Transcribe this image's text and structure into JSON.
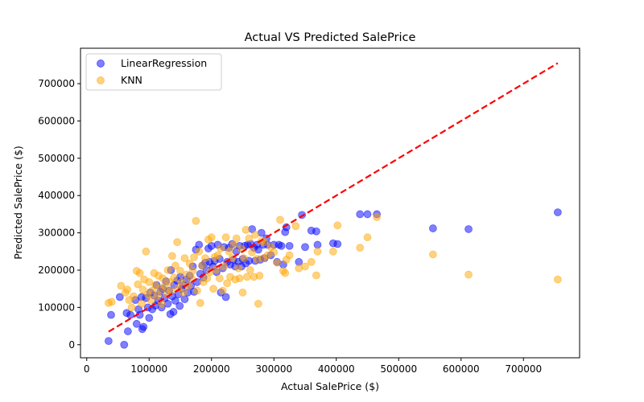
{
  "chart_data": {
    "type": "scatter",
    "title": "Actual VS Predicted SalePrice",
    "xlabel": "Actual SalePrice ($)",
    "ylabel": "Predicted SalePrice ($)",
    "xlim": [
      -10000,
      790000
    ],
    "ylim": [
      -35000,
      795000
    ],
    "xticks": [
      0,
      100000,
      200000,
      300000,
      400000,
      500000,
      600000,
      700000
    ],
    "yticks": [
      0,
      100000,
      200000,
      300000,
      400000,
      500000,
      600000,
      700000
    ],
    "grid": false,
    "legend_position": "top-left",
    "series": [
      {
        "name": "LinearRegression",
        "color": "#0000ff",
        "alpha": 0.5,
        "points": [
          [
            35000,
            10000
          ],
          [
            39000,
            80000
          ],
          [
            53000,
            128000
          ],
          [
            60000,
            0
          ],
          [
            64000,
            85000
          ],
          [
            66000,
            36000
          ],
          [
            70000,
            80000
          ],
          [
            78000,
            120000
          ],
          [
            80000,
            56000
          ],
          [
            83000,
            95000
          ],
          [
            85000,
            80000
          ],
          [
            88000,
            128000
          ],
          [
            89000,
            42000
          ],
          [
            91000,
            48000
          ],
          [
            95000,
            125000
          ],
          [
            98000,
            100000
          ],
          [
            100000,
            72000
          ],
          [
            102000,
            140000
          ],
          [
            105000,
            95000
          ],
          [
            108000,
            132000
          ],
          [
            110000,
            105000
          ],
          [
            112000,
            160000
          ],
          [
            115000,
            118000
          ],
          [
            118000,
            142000
          ],
          [
            120000,
            100000
          ],
          [
            122000,
            150000
          ],
          [
            125000,
            125000
          ],
          [
            127000,
            170000
          ],
          [
            130000,
            110000
          ],
          [
            132000,
            145000
          ],
          [
            134000,
            82000
          ],
          [
            135000,
            200000
          ],
          [
            137000,
            130000
          ],
          [
            139000,
            88000
          ],
          [
            140000,
            160000
          ],
          [
            142000,
            118000
          ],
          [
            145000,
            172000
          ],
          [
            147000,
            135000
          ],
          [
            149000,
            104000
          ],
          [
            150000,
            182000
          ],
          [
            152000,
            150000
          ],
          [
            155000,
            160000
          ],
          [
            157000,
            122000
          ],
          [
            160000,
            175000
          ],
          [
            162000,
            140000
          ],
          [
            165000,
            185000
          ],
          [
            167000,
            158000
          ],
          [
            170000,
            210000
          ],
          [
            172000,
            142000
          ],
          [
            175000,
            255000
          ],
          [
            177000,
            168000
          ],
          [
            180000,
            268000
          ],
          [
            182000,
            190000
          ],
          [
            185000,
            212000
          ],
          [
            187000,
            180000
          ],
          [
            190000,
            220000
          ],
          [
            192000,
            200000
          ],
          [
            195000,
            258000
          ],
          [
            197000,
            222000
          ],
          [
            200000,
            265000
          ],
          [
            202000,
            210000
          ],
          [
            205000,
            225000
          ],
          [
            208000,
            195000
          ],
          [
            210000,
            268000
          ],
          [
            213000,
            230000
          ],
          [
            215000,
            140000
          ],
          [
            218000,
            205000
          ],
          [
            220000,
            262000
          ],
          [
            223000,
            128000
          ],
          [
            225000,
            222000
          ],
          [
            228000,
            260000
          ],
          [
            230000,
            215000
          ],
          [
            233000,
            270000
          ],
          [
            235000,
            228000
          ],
          [
            238000,
            210000
          ],
          [
            240000,
            250000
          ],
          [
            243000,
            222000
          ],
          [
            245000,
            265000
          ],
          [
            248000,
            210000
          ],
          [
            250000,
            230000
          ],
          [
            253000,
            265000
          ],
          [
            255000,
            218000
          ],
          [
            258000,
            268000
          ],
          [
            260000,
            225000
          ],
          [
            263000,
            270000
          ],
          [
            265000,
            310000
          ],
          [
            268000,
            260000
          ],
          [
            270000,
            225000
          ],
          [
            273000,
            268000
          ],
          [
            275000,
            255000
          ],
          [
            278000,
            228000
          ],
          [
            280000,
            300000
          ],
          [
            283000,
            268000
          ],
          [
            285000,
            232000
          ],
          [
            288000,
            285000
          ],
          [
            290000,
            268000
          ],
          [
            295000,
            240000
          ],
          [
            300000,
            268000
          ],
          [
            305000,
            222000
          ],
          [
            308000,
            268000
          ],
          [
            312000,
            265000
          ],
          [
            315000,
            215000
          ],
          [
            318000,
            302000
          ],
          [
            320000,
            315000
          ],
          [
            325000,
            265000
          ],
          [
            340000,
            222000
          ],
          [
            345000,
            348000
          ],
          [
            350000,
            262000
          ],
          [
            360000,
            306000
          ],
          [
            368000,
            304000
          ],
          [
            370000,
            268000
          ],
          [
            395000,
            272000
          ],
          [
            402000,
            270000
          ],
          [
            438000,
            350000
          ],
          [
            450000,
            350000
          ],
          [
            465000,
            350000
          ],
          [
            555000,
            312000
          ],
          [
            612000,
            310000
          ],
          [
            755000,
            355000
          ]
        ]
      },
      {
        "name": "KNN",
        "color": "#ffa500",
        "alpha": 0.5,
        "points": [
          [
            35000,
            112000
          ],
          [
            40000,
            115000
          ],
          [
            55000,
            158000
          ],
          [
            62000,
            140000
          ],
          [
            65000,
            148000
          ],
          [
            68000,
            120000
          ],
          [
            72000,
            100000
          ],
          [
            75000,
            130000
          ],
          [
            80000,
            198000
          ],
          [
            82000,
            162000
          ],
          [
            85000,
            192000
          ],
          [
            88000,
            110000
          ],
          [
            90000,
            148000
          ],
          [
            92000,
            175000
          ],
          [
            95000,
            250000
          ],
          [
            98000,
            135000
          ],
          [
            100000,
            168000
          ],
          [
            103000,
            120000
          ],
          [
            105000,
            145000
          ],
          [
            108000,
            192000
          ],
          [
            110000,
            160000
          ],
          [
            113000,
            132000
          ],
          [
            115000,
            185000
          ],
          [
            118000,
            150000
          ],
          [
            120000,
            110000
          ],
          [
            122000,
            178000
          ],
          [
            125000,
            158000
          ],
          [
            128000,
            138000
          ],
          [
            130000,
            200000
          ],
          [
            133000,
            168000
          ],
          [
            135000,
            145000
          ],
          [
            137000,
            238000
          ],
          [
            140000,
            180000
          ],
          [
            142000,
            212000
          ],
          [
            145000,
            275000
          ],
          [
            147000,
            152000
          ],
          [
            150000,
            198000
          ],
          [
            152000,
            168000
          ],
          [
            155000,
            140000
          ],
          [
            157000,
            232000
          ],
          [
            160000,
            188000
          ],
          [
            163000,
            158000
          ],
          [
            165000,
            218000
          ],
          [
            168000,
            178000
          ],
          [
            170000,
            198000
          ],
          [
            172000,
            235000
          ],
          [
            175000,
            332000
          ],
          [
            177000,
            145000
          ],
          [
            180000,
            250000
          ],
          [
            182000,
            112000
          ],
          [
            185000,
            212000
          ],
          [
            187000,
            168000
          ],
          [
            190000,
            232000
          ],
          [
            193000,
            178000
          ],
          [
            195000,
            282000
          ],
          [
            198000,
            195000
          ],
          [
            200000,
            288000
          ],
          [
            203000,
            150000
          ],
          [
            205000,
            235000
          ],
          [
            208000,
            202000
          ],
          [
            210000,
            240000
          ],
          [
            213000,
            178000
          ],
          [
            215000,
            258000
          ],
          [
            218000,
            145000
          ],
          [
            220000,
            210000
          ],
          [
            223000,
            288000
          ],
          [
            225000,
            165000
          ],
          [
            228000,
            250000
          ],
          [
            230000,
            182000
          ],
          [
            233000,
            232000
          ],
          [
            235000,
            268000
          ],
          [
            238000,
            175000
          ],
          [
            240000,
            285000
          ],
          [
            243000,
            205000
          ],
          [
            245000,
            178000
          ],
          [
            248000,
            258000
          ],
          [
            250000,
            140000
          ],
          [
            252000,
            232000
          ],
          [
            255000,
            308000
          ],
          [
            257000,
            182000
          ],
          [
            260000,
            285000
          ],
          [
            262000,
            200000
          ],
          [
            265000,
            248000
          ],
          [
            268000,
            182000
          ],
          [
            270000,
            295000
          ],
          [
            273000,
            230000
          ],
          [
            275000,
            110000
          ],
          [
            277000,
            185000
          ],
          [
            280000,
            278000
          ],
          [
            283000,
            232000
          ],
          [
            285000,
            275000
          ],
          [
            290000,
            240000
          ],
          [
            295000,
            262000
          ],
          [
            300000,
            248000
          ],
          [
            305000,
            220000
          ],
          [
            310000,
            335000
          ],
          [
            315000,
            198000
          ],
          [
            318000,
            192000
          ],
          [
            320000,
            228000
          ],
          [
            325000,
            240000
          ],
          [
            335000,
            318000
          ],
          [
            340000,
            205000
          ],
          [
            350000,
            210000
          ],
          [
            360000,
            222000
          ],
          [
            368000,
            186000
          ],
          [
            370000,
            250000
          ],
          [
            395000,
            250000
          ],
          [
            402000,
            320000
          ],
          [
            438000,
            260000
          ],
          [
            450000,
            288000
          ],
          [
            465000,
            342000
          ],
          [
            555000,
            242000
          ],
          [
            612000,
            188000
          ],
          [
            755000,
            175000
          ]
        ]
      }
    ],
    "reference_line": {
      "color": "#ff0000",
      "style": "dashed",
      "points": [
        [
          35000,
          35000
        ],
        [
          755000,
          755000
        ]
      ]
    }
  }
}
